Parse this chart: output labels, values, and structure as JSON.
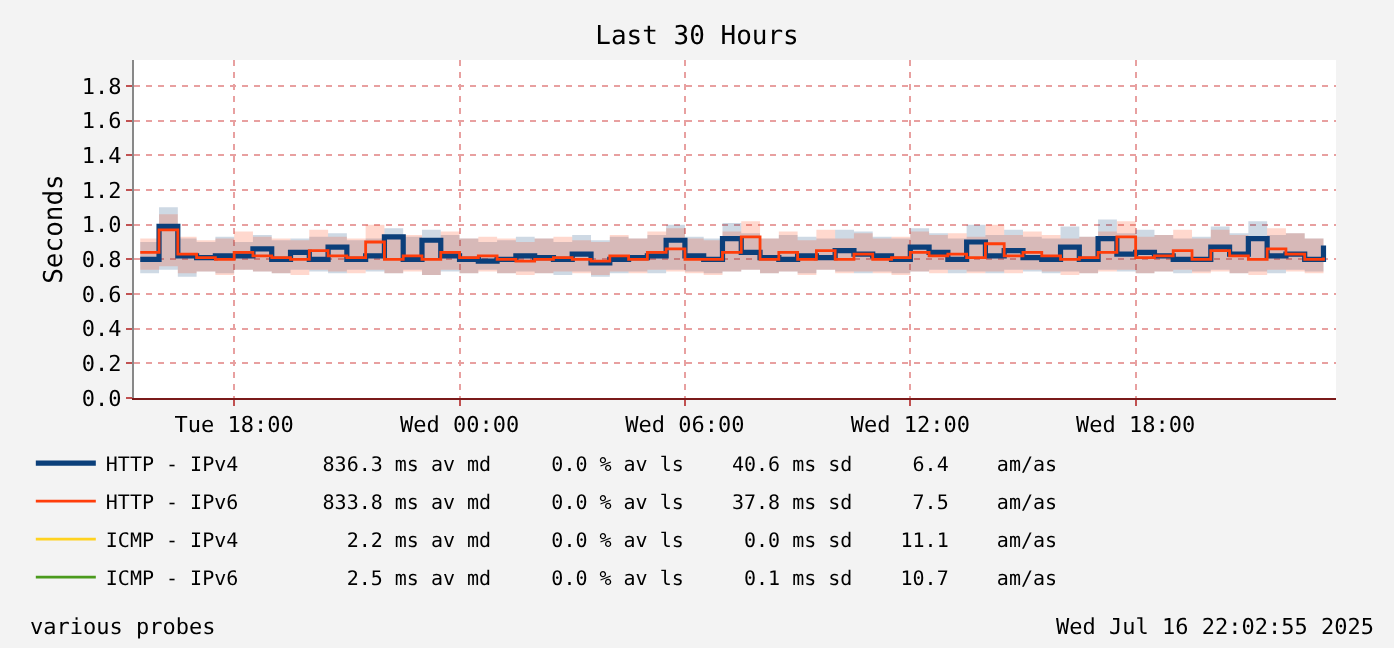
{
  "chart_data": {
    "type": "step",
    "title": "Last 30 Hours",
    "ylabel": "Seconds",
    "xlim": [
      "2025-07-15T15:20",
      "2025-07-16T23:20"
    ],
    "xticks": [
      {
        "value": "2025-07-15T18:00",
        "label": "Tue 18:00"
      },
      {
        "value": "2025-07-16T00:00",
        "label": "Wed 00:00"
      },
      {
        "value": "2025-07-16T06:00",
        "label": "Wed 06:00"
      },
      {
        "value": "2025-07-16T12:00",
        "label": "Wed 12:00"
      },
      {
        "value": "2025-07-16T18:00",
        "label": "Wed 18:00"
      }
    ],
    "ylim": [
      0,
      1.95
    ],
    "yticks": [
      {
        "value": 0,
        "label": "0.0"
      },
      {
        "value": 0.2,
        "label": "0.2"
      },
      {
        "value": 0.4,
        "label": "0.4"
      },
      {
        "value": 0.6,
        "label": "0.6"
      },
      {
        "value": 0.8,
        "label": "0.8"
      },
      {
        "value": 1,
        "label": "1.0"
      },
      {
        "value": 1.2,
        "label": "1.2"
      },
      {
        "value": 1.4,
        "label": "1.4"
      },
      {
        "value": 1.6,
        "label": "1.6"
      },
      {
        "value": 1.8,
        "label": "1.8"
      }
    ],
    "grid": true,
    "legend": "bottom",
    "marker": "none",
    "line_style": "solid",
    "x": [
      "2025-07-15T15:30",
      "2025-07-15T16:00",
      "2025-07-15T16:30",
      "2025-07-15T17:00",
      "2025-07-15T17:30",
      "2025-07-15T18:00",
      "2025-07-15T18:30",
      "2025-07-15T19:00",
      "2025-07-15T19:30",
      "2025-07-15T20:00",
      "2025-07-15T20:30",
      "2025-07-15T21:00",
      "2025-07-15T21:30",
      "2025-07-15T22:00",
      "2025-07-15T22:30",
      "2025-07-15T23:00",
      "2025-07-15T23:30",
      "2025-07-16T00:00",
      "2025-07-16T00:30",
      "2025-07-16T01:00",
      "2025-07-16T01:30",
      "2025-07-16T02:00",
      "2025-07-16T02:30",
      "2025-07-16T03:00",
      "2025-07-16T03:30",
      "2025-07-16T04:00",
      "2025-07-16T04:30",
      "2025-07-16T05:00",
      "2025-07-16T05:30",
      "2025-07-16T06:00",
      "2025-07-16T06:30",
      "2025-07-16T07:00",
      "2025-07-16T07:30",
      "2025-07-16T08:00",
      "2025-07-16T08:30",
      "2025-07-16T09:00",
      "2025-07-16T09:30",
      "2025-07-16T10:00",
      "2025-07-16T10:30",
      "2025-07-16T11:00",
      "2025-07-16T11:30",
      "2025-07-16T12:00",
      "2025-07-16T12:30",
      "2025-07-16T13:00",
      "2025-07-16T13:30",
      "2025-07-16T14:00",
      "2025-07-16T14:30",
      "2025-07-16T15:00",
      "2025-07-16T15:30",
      "2025-07-16T16:00",
      "2025-07-16T16:30",
      "2025-07-16T17:00",
      "2025-07-16T17:30",
      "2025-07-16T18:00",
      "2025-07-16T18:30",
      "2025-07-16T19:00",
      "2025-07-16T19:30",
      "2025-07-16T20:00",
      "2025-07-16T20:30",
      "2025-07-16T21:00",
      "2025-07-16T21:30",
      "2025-07-16T22:00",
      "2025-07-16T22:30",
      "2025-07-16T23:00"
    ],
    "series": [
      {
        "name": "HTTP - IPv4       836.3 ms av md     0.0 % av ls    40.6 ms sd     6.4    am/as",
        "color": "#0b3f7a",
        "values": [
          0.8,
          0.99,
          0.82,
          0.81,
          0.82,
          0.82,
          0.86,
          0.8,
          0.84,
          0.8,
          0.87,
          0.8,
          0.82,
          0.93,
          0.8,
          0.91,
          0.82,
          0.8,
          0.79,
          0.8,
          0.82,
          0.81,
          0.8,
          0.83,
          0.78,
          0.8,
          0.81,
          0.82,
          0.91,
          0.82,
          0.8,
          0.92,
          0.84,
          0.81,
          0.8,
          0.82,
          0.81,
          0.85,
          0.83,
          0.82,
          0.8,
          0.87,
          0.84,
          0.8,
          0.9,
          0.82,
          0.85,
          0.81,
          0.8,
          0.87,
          0.8,
          0.92,
          0.83,
          0.84,
          0.82,
          0.8,
          0.8,
          0.87,
          0.83,
          0.92,
          0.82,
          0.83,
          0.8,
          0.88
        ],
        "lower": [
          0.72,
          0.74,
          0.7,
          0.73,
          0.72,
          0.74,
          0.73,
          0.72,
          0.74,
          0.73,
          0.72,
          0.74,
          0.73,
          0.72,
          0.74,
          0.71,
          0.73,
          0.72,
          0.74,
          0.72,
          0.73,
          0.72,
          0.71,
          0.73,
          0.7,
          0.72,
          0.73,
          0.72,
          0.74,
          0.73,
          0.72,
          0.73,
          0.74,
          0.72,
          0.73,
          0.72,
          0.74,
          0.73,
          0.72,
          0.73,
          0.72,
          0.73,
          0.74,
          0.72,
          0.73,
          0.72,
          0.74,
          0.73,
          0.72,
          0.73,
          0.72,
          0.74,
          0.73,
          0.72,
          0.73,
          0.72,
          0.73,
          0.74,
          0.72,
          0.73,
          0.72,
          0.74,
          0.73,
          0.72
        ],
        "upper": [
          0.9,
          1.1,
          0.92,
          0.9,
          0.93,
          0.9,
          0.94,
          0.91,
          0.92,
          0.93,
          0.95,
          0.91,
          0.92,
          0.98,
          0.93,
          0.97,
          0.94,
          0.92,
          0.9,
          0.91,
          0.93,
          0.92,
          0.9,
          0.94,
          0.91,
          0.93,
          0.92,
          0.94,
          1.0,
          0.93,
          0.92,
          1.01,
          0.95,
          0.92,
          0.94,
          0.93,
          0.92,
          0.97,
          0.96,
          0.93,
          0.92,
          0.98,
          0.95,
          0.92,
          1.0,
          0.94,
          0.97,
          0.93,
          0.92,
          0.99,
          0.93,
          1.03,
          0.95,
          0.97,
          0.94,
          0.92,
          0.93,
          0.99,
          0.95,
          1.02,
          0.94,
          0.95,
          0.92,
          0.98
        ]
      },
      {
        "name": "HTTP - IPv6       833.8 ms av md     0.0 % av ls    37.8 ms sd     7.5    am/as",
        "color": "#ff3d0a",
        "values": [
          0.84,
          0.97,
          0.83,
          0.81,
          0.8,
          0.84,
          0.82,
          0.81,
          0.8,
          0.85,
          0.82,
          0.81,
          0.9,
          0.8,
          0.82,
          0.8,
          0.84,
          0.81,
          0.82,
          0.8,
          0.79,
          0.8,
          0.81,
          0.8,
          0.79,
          0.82,
          0.8,
          0.84,
          0.86,
          0.8,
          0.8,
          0.84,
          0.93,
          0.8,
          0.84,
          0.8,
          0.85,
          0.8,
          0.83,
          0.8,
          0.81,
          0.84,
          0.82,
          0.83,
          0.81,
          0.89,
          0.82,
          0.84,
          0.82,
          0.8,
          0.81,
          0.84,
          0.93,
          0.81,
          0.82,
          0.85,
          0.8,
          0.85,
          0.82,
          0.8,
          0.86,
          0.83,
          0.8,
          0.81
        ],
        "lower": [
          0.74,
          0.76,
          0.72,
          0.73,
          0.71,
          0.74,
          0.73,
          0.72,
          0.71,
          0.74,
          0.73,
          0.72,
          0.74,
          0.72,
          0.73,
          0.71,
          0.74,
          0.72,
          0.73,
          0.72,
          0.71,
          0.72,
          0.73,
          0.72,
          0.71,
          0.73,
          0.72,
          0.74,
          0.73,
          0.72,
          0.71,
          0.73,
          0.74,
          0.72,
          0.73,
          0.71,
          0.74,
          0.72,
          0.73,
          0.72,
          0.71,
          0.73,
          0.72,
          0.74,
          0.72,
          0.73,
          0.72,
          0.74,
          0.73,
          0.71,
          0.72,
          0.73,
          0.74,
          0.72,
          0.73,
          0.74,
          0.72,
          0.73,
          0.72,
          0.71,
          0.74,
          0.73,
          0.72,
          0.73
        ],
        "upper": [
          0.92,
          1.06,
          0.93,
          0.91,
          0.92,
          0.96,
          0.93,
          0.92,
          0.91,
          0.97,
          0.93,
          0.92,
          1.0,
          0.92,
          0.94,
          0.91,
          0.96,
          0.92,
          0.93,
          0.92,
          0.9,
          0.92,
          0.93,
          0.91,
          0.9,
          0.94,
          0.92,
          0.96,
          0.98,
          0.92,
          0.91,
          0.96,
          1.02,
          0.92,
          0.96,
          0.91,
          0.97,
          0.92,
          0.95,
          0.92,
          0.93,
          0.96,
          0.94,
          0.95,
          0.93,
          1.0,
          0.94,
          0.96,
          0.94,
          0.92,
          0.93,
          0.96,
          1.02,
          0.93,
          0.94,
          0.97,
          0.92,
          0.97,
          0.94,
          0.92,
          0.98,
          0.95,
          0.92,
          0.93
        ]
      },
      {
        "name": "ICMP - IPv4         2.2 ms av md     0.0 % av ls     0.0 ms sd    11.1    am/as",
        "color": "#ffd21f",
        "values": [
          null,
          null,
          null,
          null,
          null,
          null,
          null,
          null,
          null,
          null,
          null,
          null,
          null,
          null,
          null,
          null,
          null,
          null,
          null,
          null,
          null,
          null,
          null,
          null,
          null,
          null,
          null,
          null,
          null,
          null,
          null,
          null,
          null,
          null,
          null,
          null,
          null,
          null,
          null,
          null,
          null,
          null,
          null,
          null,
          null,
          null,
          null,
          null,
          null,
          null,
          null,
          null,
          null,
          null,
          null,
          null,
          null,
          null,
          null,
          null,
          null,
          null,
          null,
          null
        ]
      },
      {
        "name": "ICMP - IPv6         2.5 ms av md     0.0 % av ls     0.1 ms sd    10.7    am/as",
        "color": "#4a9a1c",
        "values": [
          null,
          null,
          null,
          null,
          null,
          null,
          null,
          null,
          null,
          null,
          null,
          null,
          null,
          null,
          null,
          null,
          null,
          null,
          null,
          null,
          null,
          null,
          null,
          null,
          null,
          null,
          null,
          null,
          null,
          null,
          null,
          null,
          null,
          null,
          null,
          null,
          null,
          null,
          null,
          null,
          null,
          null,
          null,
          null,
          null,
          null,
          null,
          null,
          null,
          null,
          null,
          null,
          null,
          null,
          null,
          null,
          null,
          null,
          null,
          null,
          null,
          null,
          null,
          null
        ]
      }
    ],
    "annotations": [
      "various probes",
      "Wed Jul 16 22:02:55 2025"
    ]
  }
}
